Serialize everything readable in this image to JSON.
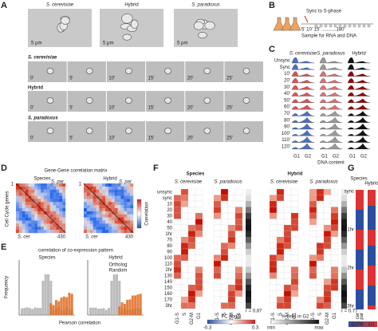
{
  "panel_a": {
    "letter": "A",
    "top_titles": [
      "S. cerevisiae",
      "Hybrid",
      "S. paradoxus"
    ],
    "scale": "5 μm",
    "rows": [
      "S. cerevisiae",
      "Hybrid",
      "S. paradoxus"
    ],
    "times": [
      "0'",
      "5'",
      "10'",
      "15'",
      "20'",
      "25'"
    ]
  },
  "panel_b": {
    "letter": "B",
    "sync": "Sync to S-phase",
    "times": "5' 10' 15' ...........180'",
    "sample": "Sample for RNA and DNA"
  },
  "panel_c": {
    "letter": "C",
    "columns": [
      "S. cerevisiae",
      "S. paradoxus",
      "Hybrid"
    ],
    "rows": [
      "Unsync",
      "Sync",
      "10'",
      "20'",
      "30'",
      "40'",
      "50'",
      "60'",
      "70'",
      "80'",
      "90'",
      "100'",
      "110'",
      "120'"
    ],
    "g1": "G1",
    "g2": "G2",
    "xlabel": "DNA content"
  },
  "panel_d": {
    "letter": "D",
    "title": "Gene-Gene correlation matrix",
    "maps": [
      "Species",
      "Hybrid"
    ],
    "top": "S. par",
    "bottom": "S. cer",
    "start": "1",
    "end": "430",
    "ylabel": "Cell Cycle genes",
    "cbar": "Correlation"
  },
  "panel_e": {
    "letter": "E",
    "title": "correlation of co-expression pattern",
    "plots": [
      "Species",
      "Hybrid"
    ],
    "ylabel": "Frequency",
    "xlabel": "Pearson correlation",
    "legend": [
      "Ortholog",
      "Random"
    ]
  },
  "panel_f": {
    "letter": "F",
    "groups": [
      "Species",
      "Hybrid"
    ],
    "maps": [
      "S. cerevisiae",
      "S. paradoxus",
      "S. cerevisiae",
      "S. paradoxus"
    ],
    "rows": [
      "unsync",
      "sync",
      "10",
      "20",
      "30",
      "40",
      "50",
      "1hr",
      "70",
      "80",
      "90",
      "100",
      "110",
      "2hr",
      "130",
      "140",
      "150",
      "160",
      "170",
      "3hr"
    ],
    "columns": [
      "G1-S",
      "S",
      "G2-M",
      "G1"
    ],
    "r": [
      "r = 0.87",
      "r = 0.77"
    ],
    "fc": "FC (log2)",
    "fc_min": "-0.3",
    "fc_max": "0.3",
    "g2": "% cells in G2",
    "min": "min",
    "max": "max"
  },
  "panel_g": {
    "letter": "G",
    "groups": [
      "Species",
      "Hybrid"
    ],
    "rows": [
      "sync",
      "1hr",
      "2hr",
      "3hr"
    ],
    "columns": [
      "S. cer",
      "S. par"
    ],
    "legend": [
      "G2/M",
      "G1"
    ]
  }
}
